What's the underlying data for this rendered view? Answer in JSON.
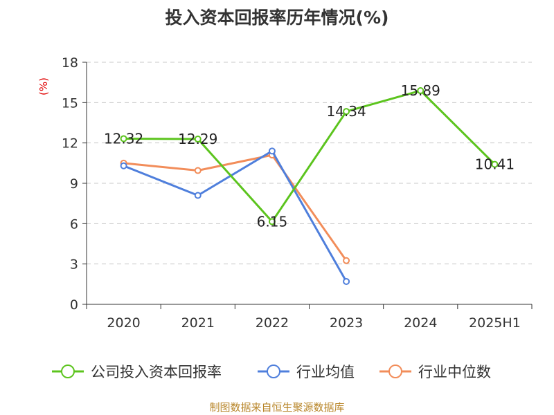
{
  "title": "投入资本回报率历年情况(%)",
  "source": "制图数据来自恒生聚源数据库",
  "chart_data": {
    "type": "line",
    "title": "投入资本回报率历年情况(%)",
    "xlabel": "",
    "ylabel": "(%)",
    "categories": [
      "2020",
      "2021",
      "2022",
      "2023",
      "2024",
      "2025H1"
    ],
    "ylim": [
      0,
      18
    ],
    "yticks": [
      0,
      3,
      6,
      9,
      12,
      15,
      18
    ],
    "grid": true,
    "legend_position": "bottom",
    "series": [
      {
        "name": "公司投入资本回报率",
        "color": "#5cc41e",
        "values": [
          12.32,
          12.29,
          6.15,
          14.34,
          15.89,
          10.41
        ],
        "show_labels": true
      },
      {
        "name": "行业均值",
        "color": "#4f7fdc",
        "values": [
          10.3,
          8.1,
          11.4,
          1.7,
          null,
          null
        ],
        "show_labels": false
      },
      {
        "name": "行业中位数",
        "color": "#f28d5a",
        "values": [
          10.5,
          9.95,
          11.1,
          3.25,
          null,
          null
        ],
        "show_labels": false
      }
    ]
  }
}
